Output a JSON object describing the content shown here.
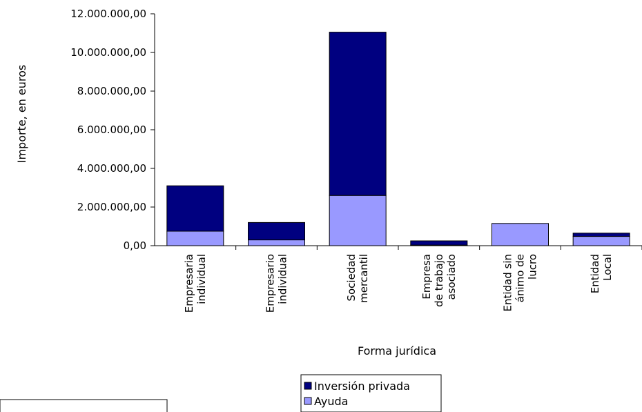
{
  "chart_data": {
    "type": "bar",
    "stacked": true,
    "categories": [
      [
        "Empresaria",
        "individual"
      ],
      [
        "Empresario",
        "individual"
      ],
      [
        "Sociedad",
        "mercantil"
      ],
      [
        "Empresa",
        "de trabajo",
        "asociado"
      ],
      [
        "Entidad sin",
        "ánimo de",
        "lucro"
      ],
      [
        "Entidad",
        "Local"
      ]
    ],
    "series": [
      {
        "name": "Ayuda",
        "color": "#9999ff",
        "values": [
          750000,
          300000,
          2600000,
          30000,
          1150000,
          480000
        ]
      },
      {
        "name": "Inversión privada",
        "color": "#000080",
        "values": [
          2350000,
          900000,
          8450000,
          220000,
          0,
          170000
        ]
      }
    ],
    "xlabel": "Forma jurídica",
    "ylabel": "Importe, en euros",
    "ylim": [
      0,
      12000000
    ],
    "yticks": [
      "0,00",
      "2.000.000,00",
      "4.000.000,00",
      "6.000.000,00",
      "8.000.000,00",
      "10.000.000,00",
      "12.000.000,00"
    ],
    "grid": false,
    "legend_order": [
      "Inversión privada",
      "Ayuda"
    ],
    "legend_position": "bottom-center"
  }
}
